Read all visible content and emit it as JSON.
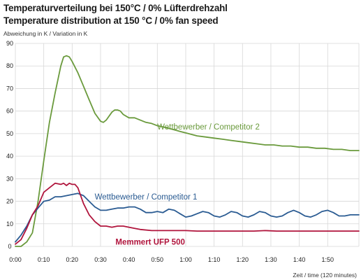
{
  "chart_data": {
    "type": "line",
    "title": "Temperaturverteilung bei 150°C / 0% Lüfterdrehzahl",
    "subtitle": "Temperature distribution at 150 °C / 0% fan speed",
    "ylabel": "Abweichung in K / Variation in K",
    "xlabel": "Zeit / time (120 minutes)",
    "xlim": [
      0,
      121
    ],
    "ylim": [
      0,
      90
    ],
    "yticks": [
      "0",
      "10",
      "20",
      "30",
      "40",
      "50",
      "60",
      "70",
      "80",
      "90"
    ],
    "xticks": [
      "0:00",
      "0:10",
      "0:20",
      "0:30",
      "0:40",
      "0:50",
      "1:00",
      "1:10",
      "1:20",
      "1:30",
      "1:40",
      "1:50"
    ],
    "grid": true,
    "series": [
      {
        "name": "Wettbewerber / Competitor 2",
        "color": "#6a9a3c",
        "label_at": [
          68,
          53
        ],
        "points": [
          [
            0,
            0
          ],
          [
            2,
            0
          ],
          [
            4,
            2
          ],
          [
            6,
            6
          ],
          [
            8,
            20
          ],
          [
            10,
            38
          ],
          [
            12,
            55
          ],
          [
            14,
            68
          ],
          [
            16,
            80
          ],
          [
            17,
            84
          ],
          [
            18,
            84.5
          ],
          [
            19,
            84
          ],
          [
            20,
            82
          ],
          [
            22,
            77
          ],
          [
            24,
            71
          ],
          [
            26,
            65
          ],
          [
            28,
            59
          ],
          [
            30,
            55.5
          ],
          [
            31,
            55
          ],
          [
            32,
            56
          ],
          [
            34,
            59.5
          ],
          [
            35,
            60.5
          ],
          [
            36,
            60.5
          ],
          [
            37,
            60
          ],
          [
            38,
            58.5
          ],
          [
            40,
            57
          ],
          [
            42,
            57
          ],
          [
            44,
            56
          ],
          [
            46,
            55
          ],
          [
            48,
            54.5
          ],
          [
            50,
            53.5
          ],
          [
            52,
            53
          ],
          [
            55,
            52
          ],
          [
            58,
            51
          ],
          [
            61,
            50
          ],
          [
            64,
            49
          ],
          [
            67,
            48.5
          ],
          [
            70,
            48
          ],
          [
            73,
            47.5
          ],
          [
            76,
            47
          ],
          [
            79,
            46.5
          ],
          [
            82,
            46
          ],
          [
            85,
            45.5
          ],
          [
            88,
            45
          ],
          [
            91,
            45
          ],
          [
            94,
            44.5
          ],
          [
            97,
            44.5
          ],
          [
            100,
            44
          ],
          [
            103,
            44
          ],
          [
            106,
            43.5
          ],
          [
            109,
            43.5
          ],
          [
            112,
            43
          ],
          [
            115,
            43
          ],
          [
            118,
            42.5
          ],
          [
            121,
            42.5
          ]
        ]
      },
      {
        "name": "Wettbewerber / Competitor 1",
        "color": "#2a5b92",
        "label_at": [
          46,
          22
        ],
        "points": [
          [
            0,
            2
          ],
          [
            2,
            5
          ],
          [
            4,
            9
          ],
          [
            6,
            14
          ],
          [
            8,
            17
          ],
          [
            10,
            20
          ],
          [
            12,
            20.5
          ],
          [
            14,
            22
          ],
          [
            16,
            22
          ],
          [
            18,
            22.5
          ],
          [
            20,
            23
          ],
          [
            22,
            23.5
          ],
          [
            24,
            22.5
          ],
          [
            26,
            20
          ],
          [
            28,
            17.5
          ],
          [
            30,
            16
          ],
          [
            32,
            16
          ],
          [
            34,
            16.5
          ],
          [
            36,
            17
          ],
          [
            38,
            17
          ],
          [
            40,
            17.5
          ],
          [
            42,
            17.5
          ],
          [
            44,
            16.5
          ],
          [
            46,
            15
          ],
          [
            48,
            15
          ],
          [
            50,
            15.5
          ],
          [
            52,
            15
          ],
          [
            54,
            16.5
          ],
          [
            56,
            16
          ],
          [
            58,
            14.5
          ],
          [
            60,
            13
          ],
          [
            62,
            13.5
          ],
          [
            64,
            14.5
          ],
          [
            66,
            15.5
          ],
          [
            68,
            15
          ],
          [
            70,
            13.5
          ],
          [
            72,
            13
          ],
          [
            74,
            14
          ],
          [
            76,
            15.5
          ],
          [
            78,
            15
          ],
          [
            80,
            13.5
          ],
          [
            82,
            13
          ],
          [
            84,
            14
          ],
          [
            86,
            15.5
          ],
          [
            88,
            15
          ],
          [
            90,
            13.5
          ],
          [
            92,
            13
          ],
          [
            94,
            13.5
          ],
          [
            96,
            15
          ],
          [
            98,
            16
          ],
          [
            100,
            15
          ],
          [
            102,
            13.5
          ],
          [
            104,
            13
          ],
          [
            106,
            14
          ],
          [
            108,
            15.5
          ],
          [
            110,
            16
          ],
          [
            112,
            15
          ],
          [
            114,
            13.5
          ],
          [
            116,
            13.5
          ],
          [
            118,
            14
          ],
          [
            120,
            14
          ],
          [
            121,
            14
          ]
        ]
      },
      {
        "name": "Memmert UFP 500",
        "color": "#b0143c",
        "label_at": [
          47.5,
          2
        ],
        "points": [
          [
            0,
            1
          ],
          [
            2,
            3
          ],
          [
            4,
            8
          ],
          [
            6,
            14
          ],
          [
            8,
            18
          ],
          [
            10,
            24
          ],
          [
            12,
            26
          ],
          [
            14,
            28
          ],
          [
            16,
            27.5
          ],
          [
            17,
            28
          ],
          [
            18,
            27
          ],
          [
            19,
            28
          ],
          [
            20,
            27.5
          ],
          [
            21,
            27.5
          ],
          [
            22,
            26
          ],
          [
            24,
            19
          ],
          [
            26,
            14
          ],
          [
            28,
            11
          ],
          [
            30,
            9
          ],
          [
            32,
            9
          ],
          [
            34,
            8.5
          ],
          [
            36,
            9
          ],
          [
            38,
            9
          ],
          [
            40,
            8.5
          ],
          [
            42,
            8
          ],
          [
            44,
            7.5
          ],
          [
            48,
            7
          ],
          [
            52,
            7
          ],
          [
            56,
            7
          ],
          [
            60,
            7
          ],
          [
            64,
            6.8
          ],
          [
            68,
            6.8
          ],
          [
            72,
            6.8
          ],
          [
            76,
            6.8
          ],
          [
            80,
            6.8
          ],
          [
            84,
            6.8
          ],
          [
            88,
            7
          ],
          [
            92,
            6.8
          ],
          [
            96,
            6.8
          ],
          [
            100,
            6.8
          ],
          [
            104,
            6.8
          ],
          [
            108,
            6.8
          ],
          [
            112,
            6.8
          ],
          [
            116,
            6.8
          ],
          [
            121,
            6.8
          ]
        ]
      }
    ]
  }
}
